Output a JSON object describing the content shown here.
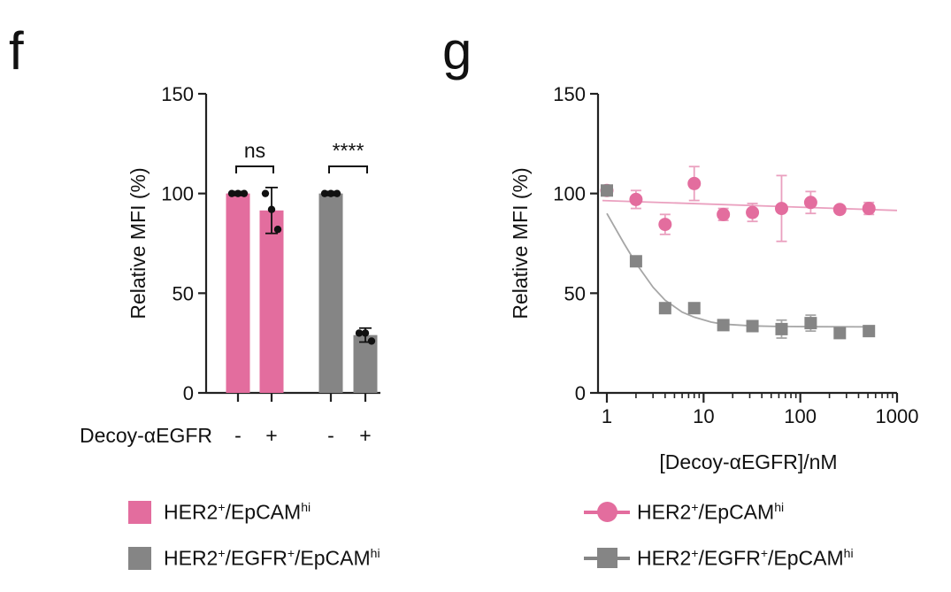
{
  "panels": {
    "f": {
      "letter": "f"
    },
    "g": {
      "letter": "g"
    }
  },
  "colors": {
    "pink": "#e36d9e",
    "pink_line": "#eaa0bf",
    "gray": "#858585",
    "gray_line": "#a6a6a6",
    "axis": "#222222"
  },
  "chart_data": [
    {
      "panel": "f",
      "type": "bar",
      "ylabel": "Relative MFI (%)",
      "ylim": [
        0,
        150
      ],
      "yticks": [
        "0",
        "50",
        "100",
        "150"
      ],
      "xrow_label": "Decoy-αEGFR",
      "categories": [
        "-",
        "+",
        "-",
        "+"
      ],
      "groups": [
        "HER2+/EpCAMhi",
        "HER2+/EpCAMhi",
        "HER2+/EGFR+/EpCAMhi",
        "HER2+/EGFR+/EpCAMhi"
      ],
      "values": [
        100,
        91.5,
        100,
        29
      ],
      "errors": [
        1,
        11.5,
        1,
        3.5
      ],
      "points": [
        [
          100,
          100,
          100
        ],
        [
          100,
          92,
          82
        ],
        [
          100,
          100,
          100
        ],
        [
          30,
          30,
          26
        ]
      ],
      "significance": [
        {
          "label": "ns",
          "between": [
            0,
            1
          ],
          "y": 112
        },
        {
          "label": "****",
          "between": [
            2,
            3
          ],
          "y": 112
        }
      ]
    },
    {
      "panel": "g",
      "type": "scatter",
      "xscale": "log",
      "xlim": [
        0.9,
        1000
      ],
      "ylim": [
        0,
        150
      ],
      "yticks": [
        "0",
        "50",
        "100",
        "150"
      ],
      "xticks": [
        "1",
        "10",
        "100",
        "1000"
      ],
      "xlabel": "[Decoy-αEGFR]/nM",
      "ylabel": "Relative MFI (%)",
      "series": [
        {
          "name": "HER2+/EpCAMhi",
          "marker": "circle",
          "x": [
            1,
            2,
            4,
            8,
            16,
            32,
            64,
            128,
            256,
            512
          ],
          "y": [
            101.5,
            97,
            84.5,
            105,
            89.5,
            90.5,
            92.5,
            95.5,
            92,
            92.5
          ],
          "err": [
            1,
            4.5,
            5,
            8.5,
            3,
            4.5,
            16.5,
            5.5,
            1.5,
            3
          ],
          "fit": [
            [
              0.9,
              96.5
            ],
            [
              1000,
              91.5
            ]
          ]
        },
        {
          "name": "HER2+/EGFR+/EpCAMhi",
          "marker": "square",
          "x": [
            1,
            2,
            4,
            8,
            16,
            32,
            64,
            128,
            256,
            512
          ],
          "y": [
            101.5,
            66,
            42.5,
            42.5,
            34,
            33.5,
            32,
            35,
            30,
            31
          ],
          "err": [
            0.5,
            2,
            1.5,
            2,
            2,
            2,
            4.5,
            4,
            1.5,
            1.5
          ],
          "fit": [
            [
              1,
              90
            ],
            [
              1.5,
              75
            ],
            [
              2,
              65
            ],
            [
              3,
              53
            ],
            [
              4,
              46.5
            ],
            [
              6,
              40.5
            ],
            [
              8,
              38
            ],
            [
              12,
              35.5
            ],
            [
              16,
              34.5
            ],
            [
              32,
              33.6
            ],
            [
              64,
              33.3
            ],
            [
              128,
              33.2
            ],
            [
              512,
              33.1
            ]
          ]
        }
      ]
    }
  ],
  "legend_f": [
    {
      "label": "HER2",
      "sup1": "+",
      "mid": "/EpCAM",
      "sup2": "hi",
      "tail": "",
      "sup3": "",
      "end": ""
    },
    {
      "label": "HER2",
      "sup1": "+",
      "mid": "/EGFR",
      "sup2": "+",
      "tail": "/EpCAM",
      "sup3": "hi",
      "end": ""
    }
  ],
  "legend_g": [
    {
      "label": "HER2",
      "sup1": "+",
      "mid": "/EpCAM",
      "sup2": "hi",
      "tail": "",
      "sup3": "",
      "end": ""
    },
    {
      "label": "HER2",
      "sup1": "+",
      "mid": "/EGFR",
      "sup2": "+",
      "tail": "/EpCAM",
      "sup3": "hi",
      "end": ""
    }
  ]
}
